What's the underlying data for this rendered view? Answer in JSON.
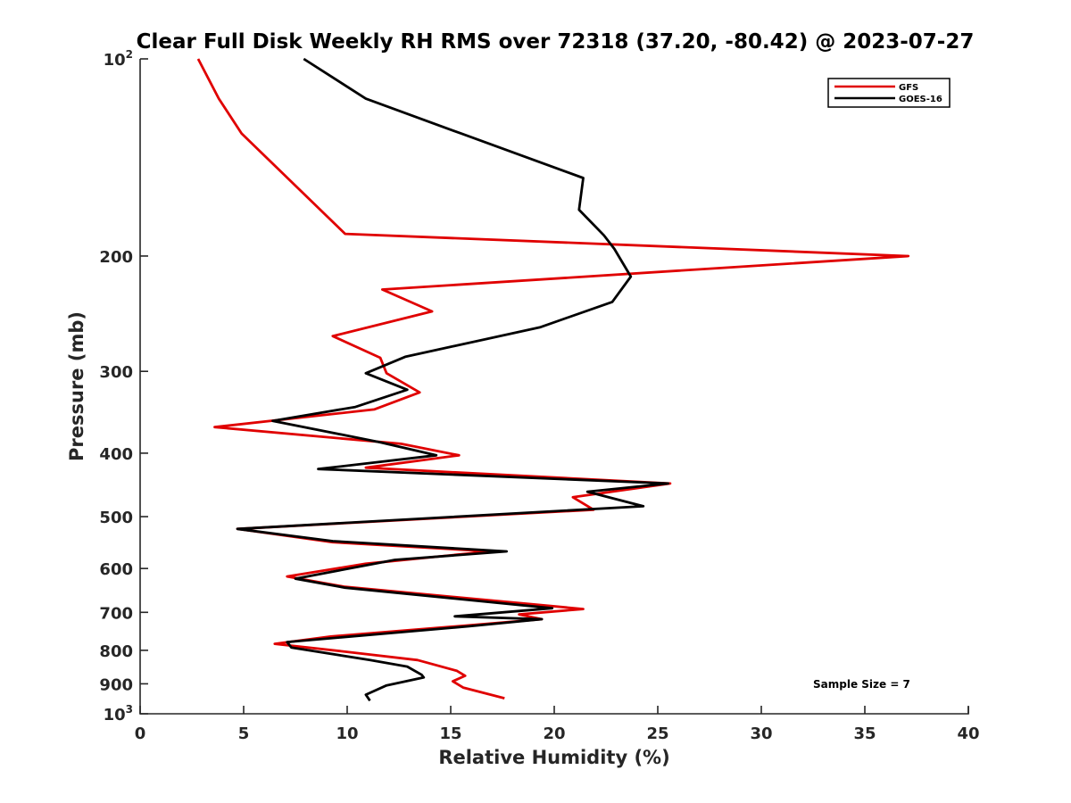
{
  "chart_data": {
    "type": "line",
    "title": "Clear Full Disk Weekly RH RMS over 72318 (37.20, -80.42) @ 2023-07-27",
    "xlabel": "Relative Humidity (%)",
    "ylabel": "Pressure (mb)",
    "xlim": [
      0,
      40
    ],
    "ylim": [
      100,
      1000
    ],
    "y_scale": "log",
    "y_reversed": true,
    "x_ticks": [
      "0",
      "5",
      "10",
      "15",
      "20",
      "25",
      "30",
      "35",
      "40"
    ],
    "y_ticks": [
      {
        "value": 100,
        "label": "10",
        "sup": "2"
      },
      {
        "value": 200,
        "label": "200",
        "sup": ""
      },
      {
        "value": 300,
        "label": "300",
        "sup": ""
      },
      {
        "value": 400,
        "label": "400",
        "sup": ""
      },
      {
        "value": 500,
        "label": "500",
        "sup": ""
      },
      {
        "value": 600,
        "label": "600",
        "sup": ""
      },
      {
        "value": 700,
        "label": "700",
        "sup": ""
      },
      {
        "value": 800,
        "label": "800",
        "sup": ""
      },
      {
        "value": 900,
        "label": "900",
        "sup": ""
      },
      {
        "value": 1000,
        "label": "10",
        "sup": "3"
      }
    ],
    "grid": false,
    "legend_position": "top-right",
    "series": [
      {
        "name": "GFS",
        "color": "#e00000",
        "points": [
          [
            2.8,
            100
          ],
          [
            3.8,
            115
          ],
          [
            4.9,
            130
          ],
          [
            9.9,
            185
          ],
          [
            37.1,
            200
          ],
          [
            11.7,
            225
          ],
          [
            14.1,
            243
          ],
          [
            9.3,
            265
          ],
          [
            11.6,
            286
          ],
          [
            11.9,
            302
          ],
          [
            13.5,
            323
          ],
          [
            11.3,
            343
          ],
          [
            3.6,
            365
          ],
          [
            12.6,
            387
          ],
          [
            15.4,
            403
          ],
          [
            10.9,
            421
          ],
          [
            25.6,
            445
          ],
          [
            20.9,
            467
          ],
          [
            21.9,
            488
          ],
          [
            4.7,
            522
          ],
          [
            9.3,
            547
          ],
          [
            16.9,
            565
          ],
          [
            10.9,
            590
          ],
          [
            7.1,
            617
          ],
          [
            9.9,
            640
          ],
          [
            21.4,
            692
          ],
          [
            18.3,
            705
          ],
          [
            19.4,
            717
          ],
          [
            15.8,
            733
          ],
          [
            9.2,
            762
          ],
          [
            6.5,
            782
          ],
          [
            9.8,
            803
          ],
          [
            13.4,
            828
          ],
          [
            15.3,
            860
          ],
          [
            15.7,
            875
          ],
          [
            15.1,
            892
          ],
          [
            15.6,
            912
          ],
          [
            17.6,
            947
          ]
        ]
      },
      {
        "name": "GOES-16",
        "color": "#000000",
        "points": [
          [
            7.9,
            100
          ],
          [
            10.9,
            115
          ],
          [
            15.5,
            130
          ],
          [
            21.4,
            152
          ],
          [
            21.2,
            170
          ],
          [
            22.4,
            186
          ],
          [
            22.9,
            195
          ],
          [
            23.7,
            215
          ],
          [
            22.8,
            235
          ],
          [
            19.3,
            257
          ],
          [
            12.8,
            285
          ],
          [
            10.9,
            302
          ],
          [
            12.9,
            320
          ],
          [
            10.4,
            340
          ],
          [
            6.4,
            357
          ],
          [
            11.6,
            385
          ],
          [
            14.3,
            403
          ],
          [
            8.6,
            423
          ],
          [
            25.5,
            445
          ],
          [
            21.6,
            458
          ],
          [
            24.3,
            482
          ],
          [
            4.7,
            522
          ],
          [
            9.3,
            545
          ],
          [
            17.7,
            565
          ],
          [
            12.3,
            582
          ],
          [
            7.5,
            622
          ],
          [
            9.9,
            642
          ],
          [
            19.9,
            690
          ],
          [
            15.2,
            710
          ],
          [
            19.4,
            717
          ],
          [
            15.9,
            735
          ],
          [
            7.1,
            777
          ],
          [
            7.3,
            792
          ],
          [
            11.1,
            828
          ],
          [
            12.9,
            847
          ],
          [
            13.6,
            872
          ],
          [
            13.7,
            880
          ],
          [
            11.9,
            905
          ],
          [
            10.9,
            935
          ],
          [
            11.1,
            955
          ]
        ]
      }
    ],
    "annotation": "Sample Size = 7"
  }
}
